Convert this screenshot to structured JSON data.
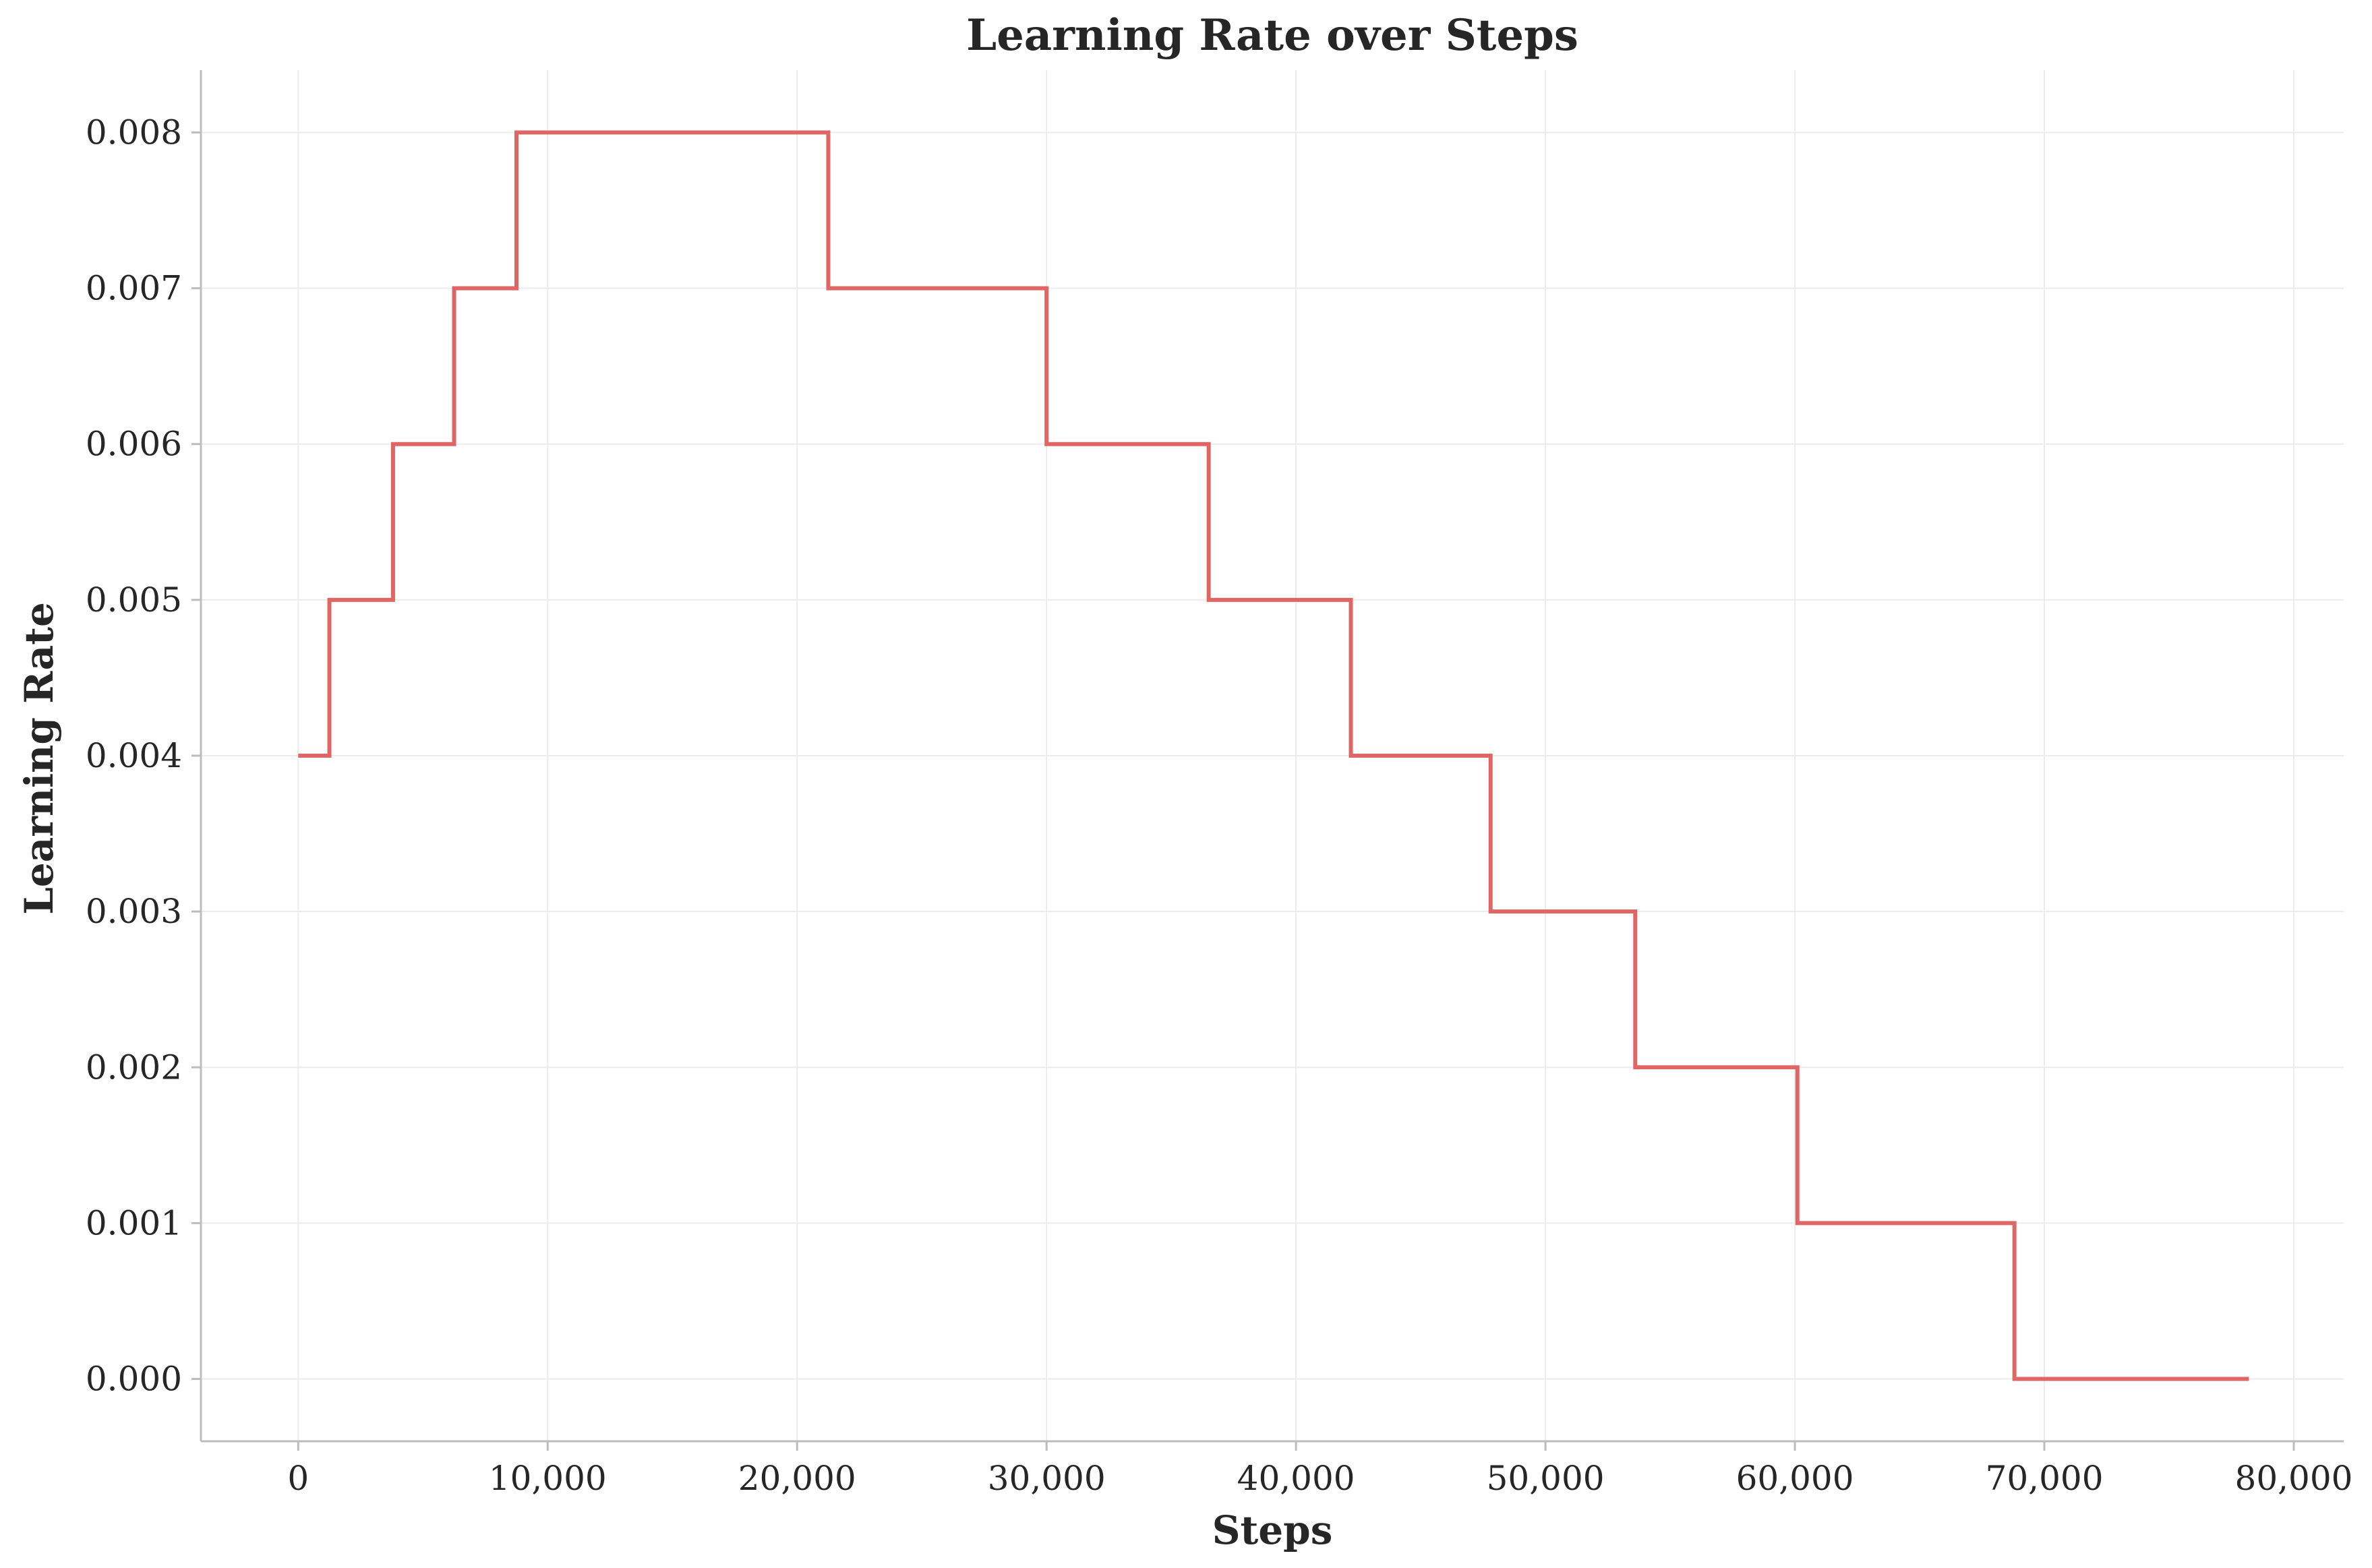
{
  "chart_data": {
    "type": "line",
    "title": "Learning Rate over Steps",
    "xlabel": "Steps",
    "ylabel": "Learning Rate",
    "xlim": [
      -3900,
      82000
    ],
    "ylim": [
      -0.0004,
      0.0084
    ],
    "xticks": [
      0,
      10000,
      20000,
      30000,
      40000,
      50000,
      60000,
      70000,
      80000
    ],
    "xtick_labels": [
      "0",
      "10,000",
      "20,000",
      "30,000",
      "40,000",
      "50,000",
      "60,000",
      "70,000",
      "80,000"
    ],
    "yticks": [
      0.0,
      0.001,
      0.002,
      0.003,
      0.004,
      0.005,
      0.006,
      0.007,
      0.008
    ],
    "ytick_labels": [
      "0.000",
      "0.001",
      "0.002",
      "0.003",
      "0.004",
      "0.005",
      "0.006",
      "0.007",
      "0.008"
    ],
    "grid": true,
    "spines": [
      "left",
      "bottom"
    ],
    "series": [
      {
        "color": "#e06666",
        "step": true,
        "x": [
          0,
          1250,
          3800,
          6250,
          8750,
          21250,
          30000,
          36500,
          42200,
          47800,
          53600,
          60100,
          68800,
          78200
        ],
        "y": [
          0.004,
          0.005,
          0.006,
          0.007,
          0.008,
          0.007,
          0.006,
          0.005,
          0.004,
          0.003,
          0.002,
          0.001,
          0.0,
          0.0
        ]
      }
    ],
    "colors": {
      "line": "#e06666",
      "grid": "#ececec",
      "spine": "#bdbdbd",
      "text": "#262626"
    }
  }
}
